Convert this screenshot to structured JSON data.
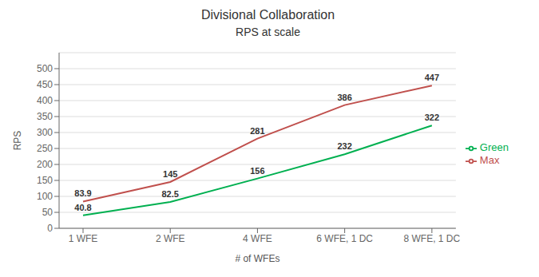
{
  "chart_data": {
    "type": "line",
    "title": "Divisional Collaboration",
    "subtitle": "RPS at scale",
    "x_label": "# of WFEs",
    "y_label": "RPS",
    "categories": [
      "1 WFE",
      "2 WFE",
      "4 WFE",
      "6 WFE, 1 DC",
      "8 WFE, 1 DC"
    ],
    "series": [
      {
        "name": "Green",
        "color": "#00b050",
        "values": [
          40.8,
          82.5,
          156,
          232,
          322
        ]
      },
      {
        "name": "Max",
        "color": "#c0504d",
        "values": [
          83.9,
          145,
          281,
          386,
          447
        ]
      }
    ],
    "ylim": [
      0,
      550
    ],
    "yticks": [
      0,
      50,
      100,
      150,
      200,
      250,
      300,
      350,
      400,
      450,
      500
    ],
    "grid": true,
    "legend": "right",
    "data_labels": true
  }
}
